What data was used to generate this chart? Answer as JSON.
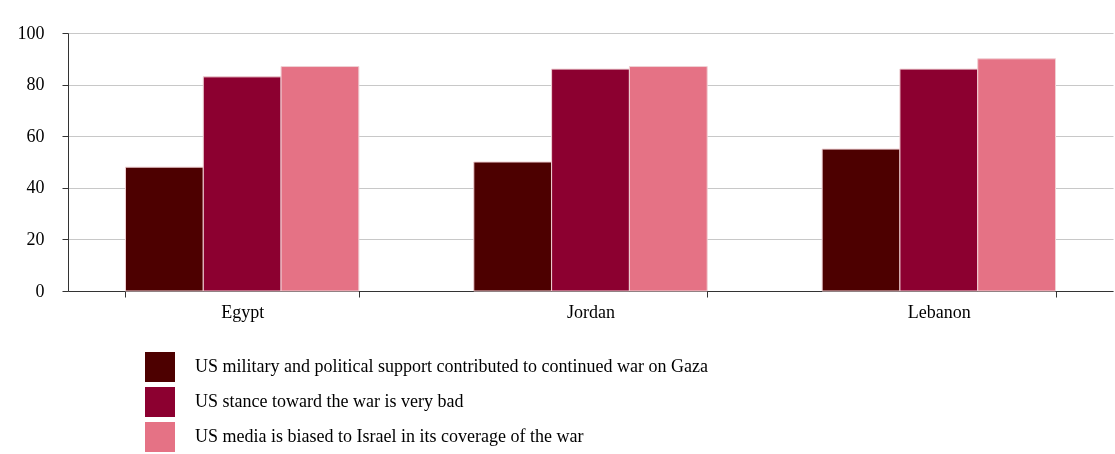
{
  "chart_data": {
    "type": "bar",
    "categories": [
      "Egypt",
      "Jordan",
      "Lebanon"
    ],
    "series": [
      {
        "name": "US military and political support contributed to continued war on Gaza",
        "color": "#4d0000",
        "values": [
          48,
          50,
          55
        ]
      },
      {
        "name": "US stance toward the war is very bad",
        "color": "#8c0030",
        "values": [
          83,
          86,
          86
        ]
      },
      {
        "name": "US media is biased to Israel in its coverage of the war",
        "color": "#e57285",
        "values": [
          87,
          87,
          90
        ]
      }
    ],
    "ylim": [
      0,
      100
    ],
    "yticks": [
      0,
      20,
      40,
      60,
      80,
      100
    ],
    "grid": "y",
    "legend": "bottom"
  }
}
